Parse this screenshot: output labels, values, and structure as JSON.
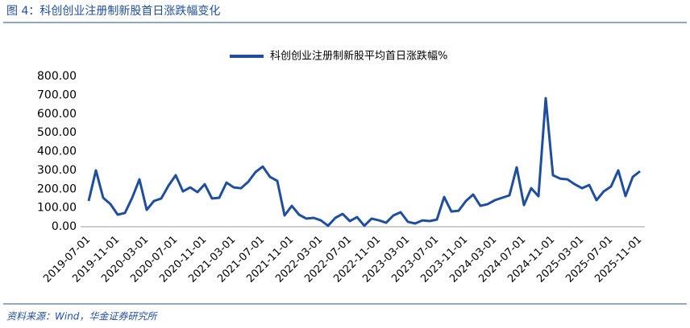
{
  "header": {
    "title": "图 4：科创创业注册制新股首日涨跌幅变化"
  },
  "footer": {
    "source": "资料来源：Wind，华金证券研究所"
  },
  "chart_data": {
    "type": "line",
    "categories": [
      "2019-07-01",
      null,
      null,
      null,
      "2019-11-01",
      null,
      null,
      null,
      "2020-03-01",
      null,
      null,
      null,
      "2020-07-01",
      null,
      null,
      null,
      "2020-11-01",
      null,
      null,
      null,
      "2021-03-01",
      null,
      null,
      null,
      "2021-07-01",
      null,
      null,
      null,
      "2021-11-01",
      null,
      null,
      null,
      "2022-03-01",
      null,
      null,
      null,
      "2022-07-01",
      null,
      null,
      null,
      "2022-11-01",
      null,
      null,
      null,
      "2023-03-01",
      null,
      null,
      null,
      "2023-07-01",
      null,
      null,
      null,
      "2023-11-01",
      null,
      null,
      null,
      "2024-03-01",
      null,
      null,
      null,
      "2024-07-01",
      null,
      null,
      null,
      "2024-11-01",
      null,
      null,
      null,
      "2025-03-01",
      null,
      null,
      null,
      "2025-07-01",
      null,
      null,
      null,
      "2025-11-01"
    ],
    "series": [
      {
        "name": "科创创业注册制新股平均首日涨跌幅%",
        "color": "#1f4e9e",
        "values": [
          137,
          300,
          154,
          120,
          64,
          73,
          154,
          252,
          90,
          137,
          150,
          218,
          274,
          188,
          209,
          184,
          226,
          150,
          154,
          235,
          209,
          205,
          239,
          291,
          320,
          265,
          244,
          60,
          111,
          64,
          43,
          47,
          34,
          5,
          47,
          68,
          30,
          51,
          5,
          43,
          34,
          21,
          60,
          77,
          26,
          17,
          34,
          30,
          38,
          158,
          81,
          85,
          137,
          171,
          111,
          120,
          141,
          154,
          167,
          316,
          115,
          205,
          162,
          684,
          274,
          256,
          252,
          226,
          205,
          222,
          141,
          188,
          214,
          300,
          163,
          265,
          295
        ]
      }
    ],
    "ylim": [
      0,
      800
    ],
    "yticks": [
      {
        "value": 0,
        "label": "0.00"
      },
      {
        "value": 100,
        "label": "100.00"
      },
      {
        "value": 200,
        "label": "200.00"
      },
      {
        "value": 300,
        "label": "300.00"
      },
      {
        "value": 400,
        "label": "400.00"
      },
      {
        "value": 500,
        "label": "500.00"
      },
      {
        "value": 600,
        "label": "600.00"
      },
      {
        "value": 700,
        "label": "700.00"
      },
      {
        "value": 800,
        "label": "800.00"
      }
    ],
    "legend": "top",
    "grid": false
  }
}
